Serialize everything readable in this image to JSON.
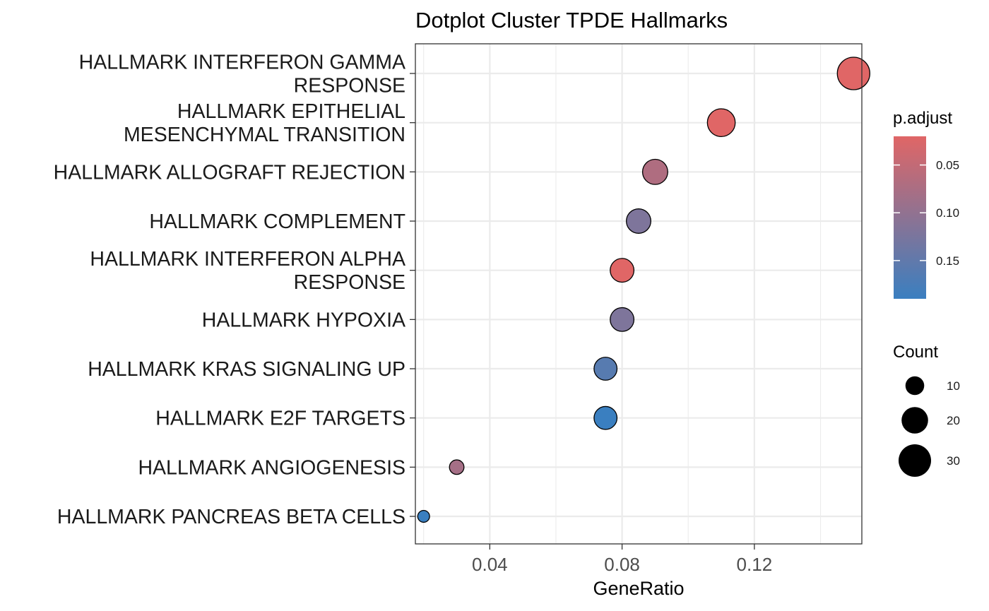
{
  "chart_data": {
    "type": "scatter",
    "title": "Dotplot Cluster TPDE Hallmarks",
    "xlabel": "GeneRatio",
    "ylabel": "",
    "xlim": [
      0.0175,
      0.1525
    ],
    "x_ticks": [
      "0.04",
      "0.08",
      "0.12"
    ],
    "x_tick_values": [
      0.04,
      0.08,
      0.12
    ],
    "grid": true,
    "categories": [
      [
        "HALLMARK INTERFERON GAMMA",
        "RESPONSE"
      ],
      [
        "HALLMARK EPITHELIAL",
        "MESENCHYMAL TRANSITION"
      ],
      [
        "HALLMARK ALLOGRAFT REJECTION"
      ],
      [
        "HALLMARK COMPLEMENT"
      ],
      [
        "HALLMARK INTERFERON ALPHA",
        "RESPONSE"
      ],
      [
        "HALLMARK HYPOXIA"
      ],
      [
        "HALLMARK KRAS SIGNALING UP"
      ],
      [
        "HALLMARK E2F TARGETS"
      ],
      [
        "HALLMARK ANGIOGENESIS"
      ],
      [
        "HALLMARK PANCREAS BETA CELLS"
      ]
    ],
    "points": [
      {
        "gene_ratio": 0.15,
        "count": 30,
        "p_adjust": 0.02
      },
      {
        "gene_ratio": 0.11,
        "count": 22,
        "p_adjust": 0.02
      },
      {
        "gene_ratio": 0.09,
        "count": 18,
        "p_adjust": 0.07
      },
      {
        "gene_ratio": 0.085,
        "count": 17,
        "p_adjust": 0.12
      },
      {
        "gene_ratio": 0.08,
        "count": 16,
        "p_adjust": 0.02
      },
      {
        "gene_ratio": 0.08,
        "count": 16,
        "p_adjust": 0.12
      },
      {
        "gene_ratio": 0.075,
        "count": 15,
        "p_adjust": 0.16
      },
      {
        "gene_ratio": 0.075,
        "count": 15,
        "p_adjust": 0.19
      },
      {
        "gene_ratio": 0.03,
        "count": 6,
        "p_adjust": 0.08
      },
      {
        "gene_ratio": 0.02,
        "count": 4,
        "p_adjust": 0.19
      }
    ],
    "color_legend": {
      "title": "p.adjust",
      "labels": [
        "0.05",
        "0.10",
        "0.15"
      ],
      "values": [
        0.05,
        0.1,
        0.15
      ],
      "range": [
        0.02,
        0.19
      ],
      "low_color": "#e06666",
      "high_color": "#3a7fc0",
      "placement": "right"
    },
    "size_legend": {
      "title": "Count",
      "labels": [
        "10",
        "20",
        "30"
      ],
      "values": [
        10,
        20,
        30
      ],
      "placement": "right"
    }
  }
}
